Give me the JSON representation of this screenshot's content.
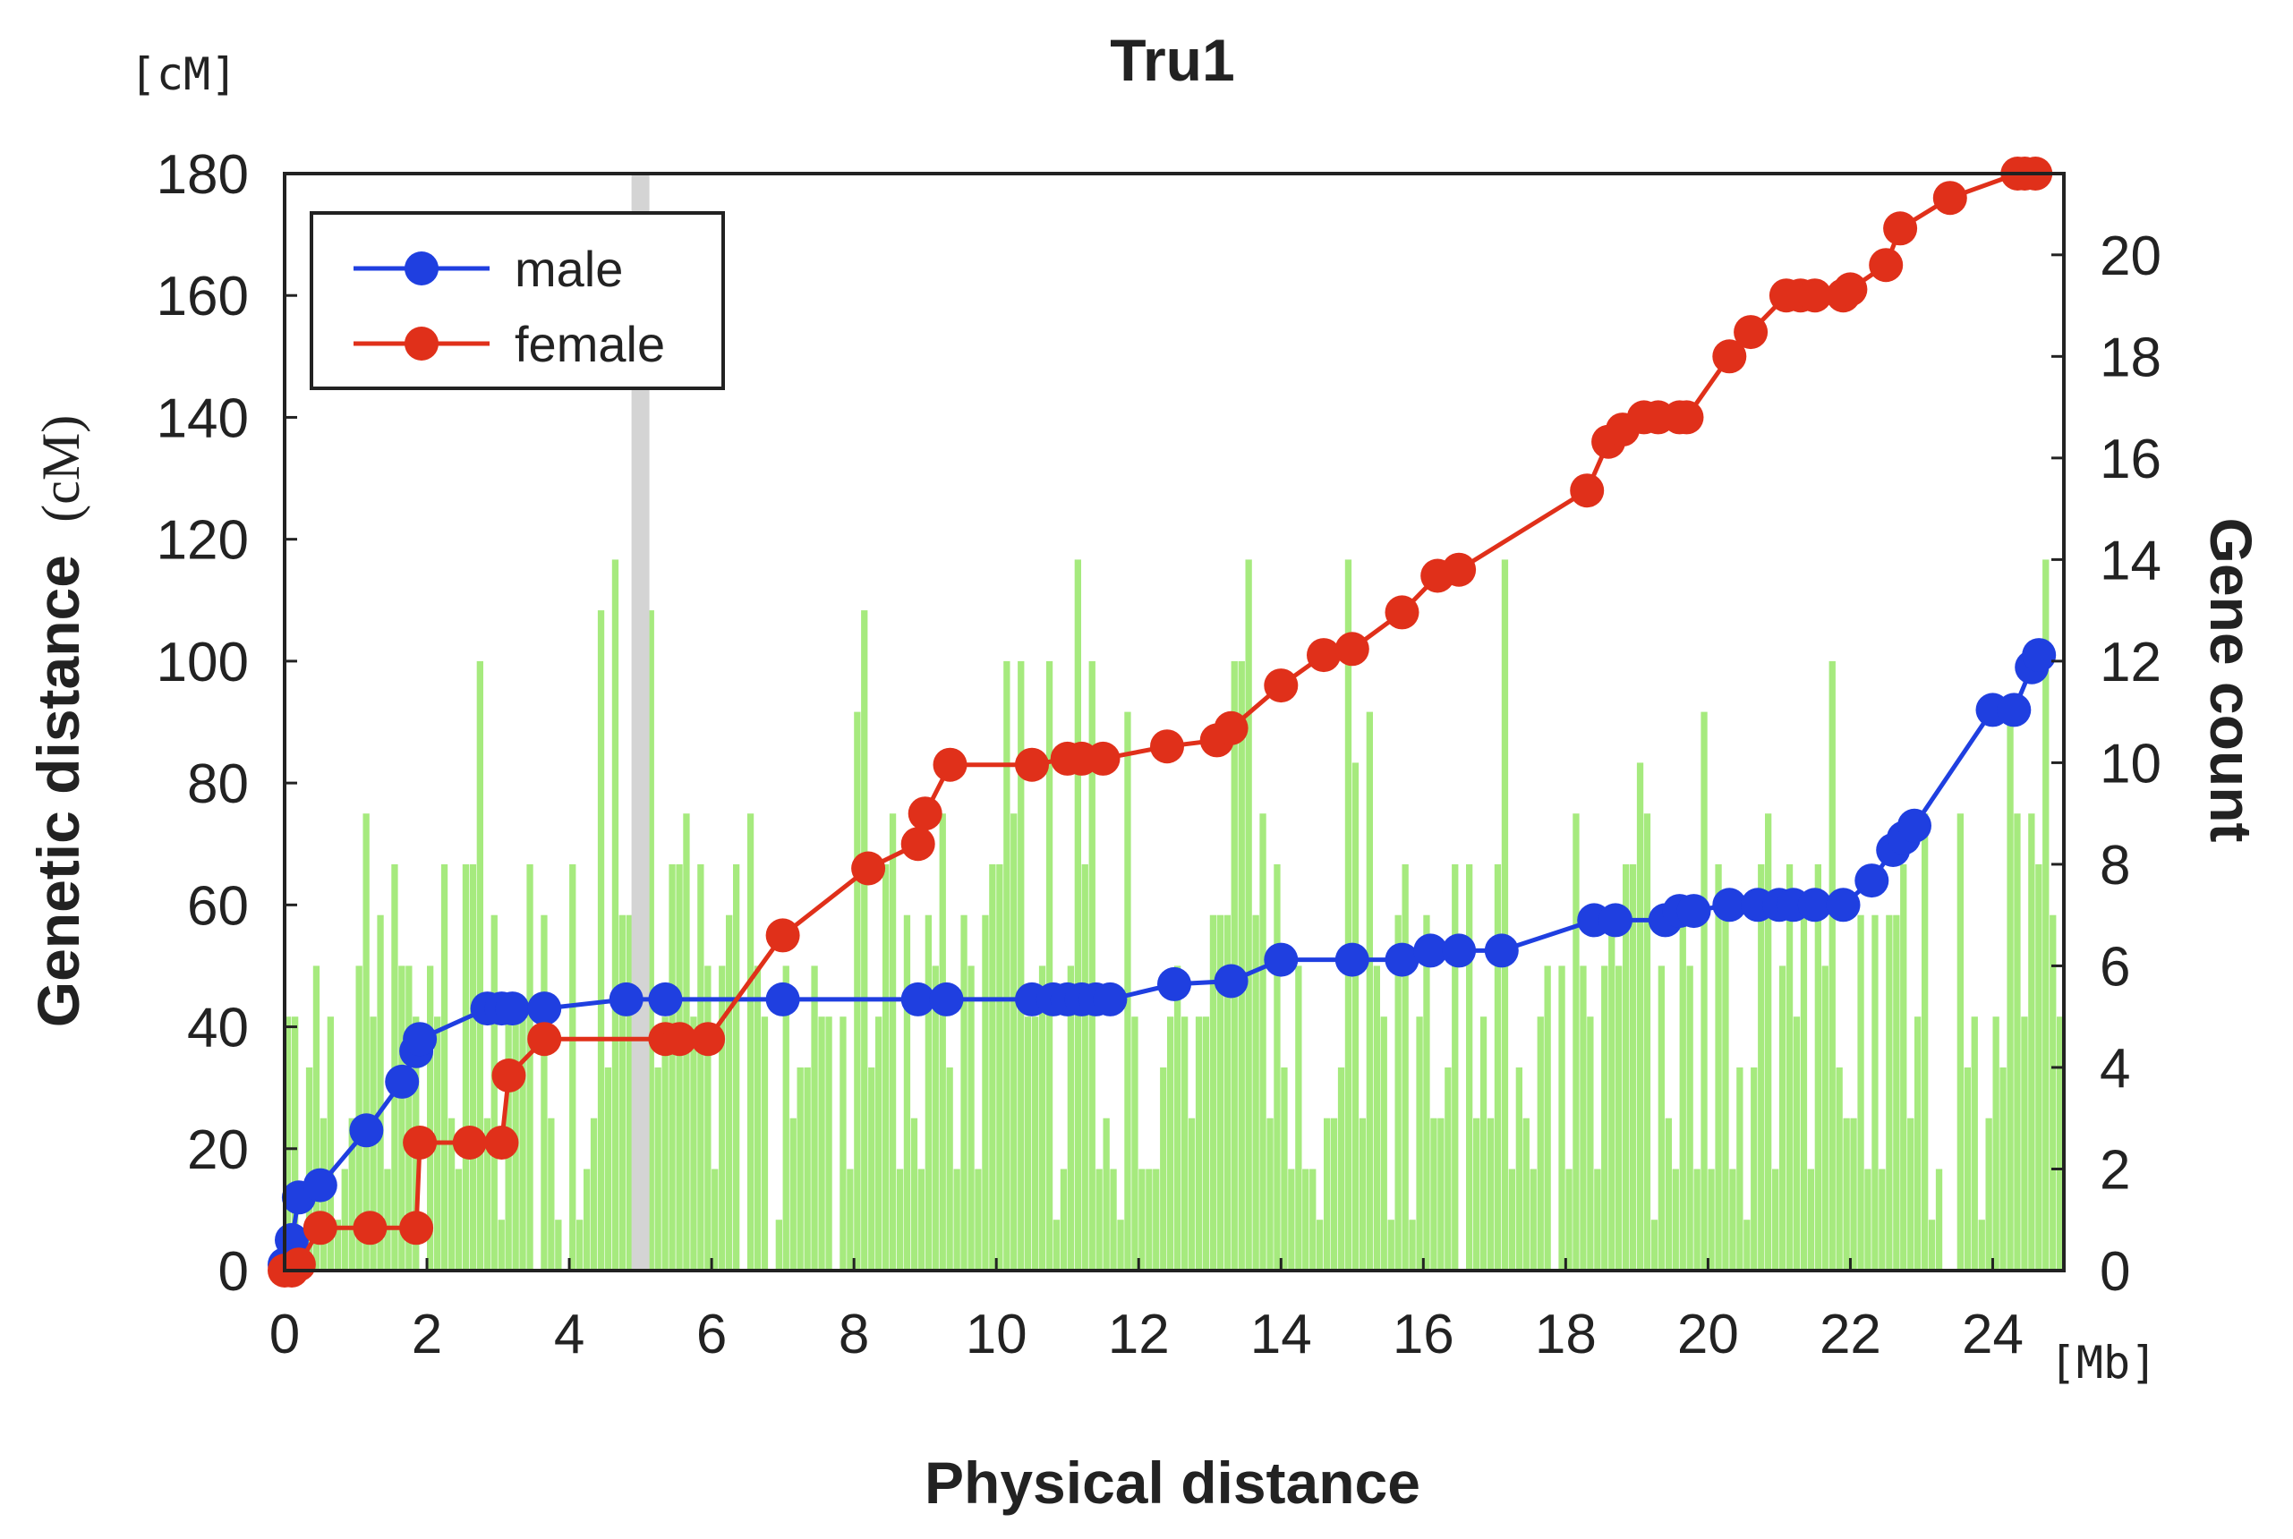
{
  "chart_data": {
    "type": "line",
    "title": "Tru1",
    "xlabel": "Physical distance",
    "x_unit": "[Mb]",
    "ylabel_main": "Genetic distance",
    "ylabel_unit": "(cM)",
    "y_unit": "[cM]",
    "y2label": "Gene count",
    "xlim": [
      0,
      25
    ],
    "ylim": [
      0,
      180
    ],
    "y2lim": [
      0,
      21.6
    ],
    "x_ticks": [
      "0",
      "2",
      "4",
      "6",
      "8",
      "10",
      "12",
      "14",
      "16",
      "18",
      "20",
      "22",
      "24"
    ],
    "y_ticks": [
      "0",
      "20",
      "40",
      "60",
      "80",
      "100",
      "120",
      "140",
      "160",
      "180"
    ],
    "y2_ticks": [
      "0",
      "2",
      "4",
      "6",
      "8",
      "10",
      "12",
      "14",
      "16",
      "18",
      "20"
    ],
    "grid": false,
    "legend_position": "top-left",
    "highlight_band_x": 5.0,
    "colors": {
      "male": "#1f3fe0",
      "female": "#e0301a",
      "gene_bars": "#a6ea7e",
      "highlight_band": "#d4d4d4"
    },
    "series": [
      {
        "name": "male",
        "x": [
          0.0,
          0.1,
          0.2,
          0.5,
          1.15,
          1.65,
          1.85,
          1.9,
          2.85,
          3.05,
          3.2,
          3.65,
          4.8,
          5.35,
          7.0,
          8.9,
          9.3,
          10.5,
          10.8,
          11.0,
          11.2,
          11.4,
          11.6,
          12.5,
          13.3,
          14.0,
          15.0,
          15.7,
          16.1,
          16.5,
          17.1,
          18.4,
          18.7,
          19.4,
          19.6,
          19.8,
          20.3,
          20.7,
          21.0,
          21.2,
          21.5,
          21.9,
          22.3,
          22.6,
          22.75,
          22.9,
          24.0,
          24.3,
          24.55,
          24.65
        ],
        "y": [
          1,
          5,
          12,
          14,
          23,
          31,
          36,
          38,
          43,
          43,
          43,
          43,
          44.5,
          44.5,
          44.5,
          44.5,
          44.5,
          44.5,
          44.5,
          44.5,
          44.5,
          44.5,
          44.5,
          47,
          47.5,
          51,
          51,
          51,
          52.5,
          52.5,
          52.5,
          57.5,
          57.5,
          57.5,
          59,
          59,
          60,
          60,
          60,
          60,
          60,
          60,
          64,
          69,
          71,
          73,
          92,
          92,
          99,
          101
        ]
      },
      {
        "name": "female",
        "x": [
          0.0,
          0.1,
          0.2,
          0.5,
          1.2,
          1.85,
          1.9,
          2.6,
          3.05,
          3.15,
          3.65,
          5.35,
          5.55,
          5.95,
          7.0,
          8.2,
          8.9,
          9.0,
          9.35,
          10.5,
          11.0,
          11.2,
          11.5,
          12.4,
          13.1,
          13.3,
          14.0,
          14.6,
          15.0,
          15.7,
          16.2,
          16.5,
          18.3,
          18.6,
          18.8,
          19.1,
          19.3,
          19.6,
          19.7,
          20.3,
          20.6,
          21.1,
          21.3,
          21.5,
          21.9,
          22.0,
          22.5,
          22.7,
          23.4,
          24.35,
          24.45,
          24.6
        ],
        "y": [
          0,
          0,
          1,
          7,
          7,
          7,
          21,
          21,
          21,
          32,
          38,
          38,
          38,
          38,
          55,
          66,
          70,
          75,
          83,
          83,
          84,
          84,
          84,
          86,
          87,
          89,
          96,
          101,
          102,
          108,
          114,
          115,
          128,
          136,
          138,
          140,
          140,
          140,
          140,
          150,
          154,
          160,
          160,
          160,
          160,
          161,
          165,
          171,
          176,
          180,
          180,
          180
        ]
      }
    ]
  }
}
